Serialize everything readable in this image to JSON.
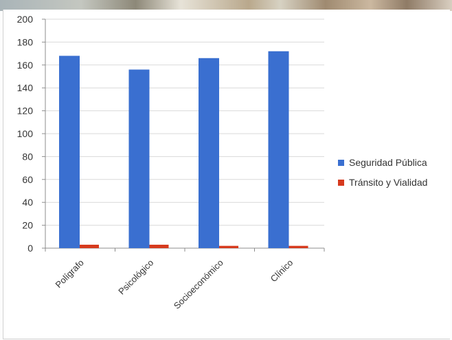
{
  "chart_data": {
    "type": "bar",
    "categories": [
      "Polígrafo",
      "Psicológico",
      "Socioeconómico",
      "Clínico"
    ],
    "series": [
      {
        "name": "Seguridad Pública",
        "color": "#3a6fd0",
        "values": [
          168,
          156,
          166,
          172
        ]
      },
      {
        "name": "Tránsito y Vialidad",
        "color": "#d63a1e",
        "values": [
          3,
          3,
          2,
          2
        ]
      }
    ],
    "ylim": [
      0,
      200
    ],
    "yticks": [
      "0",
      "20",
      "40",
      "60",
      "80",
      "100",
      "120",
      "140",
      "160",
      "180",
      "200"
    ],
    "grid": true,
    "legend_position": "right"
  }
}
